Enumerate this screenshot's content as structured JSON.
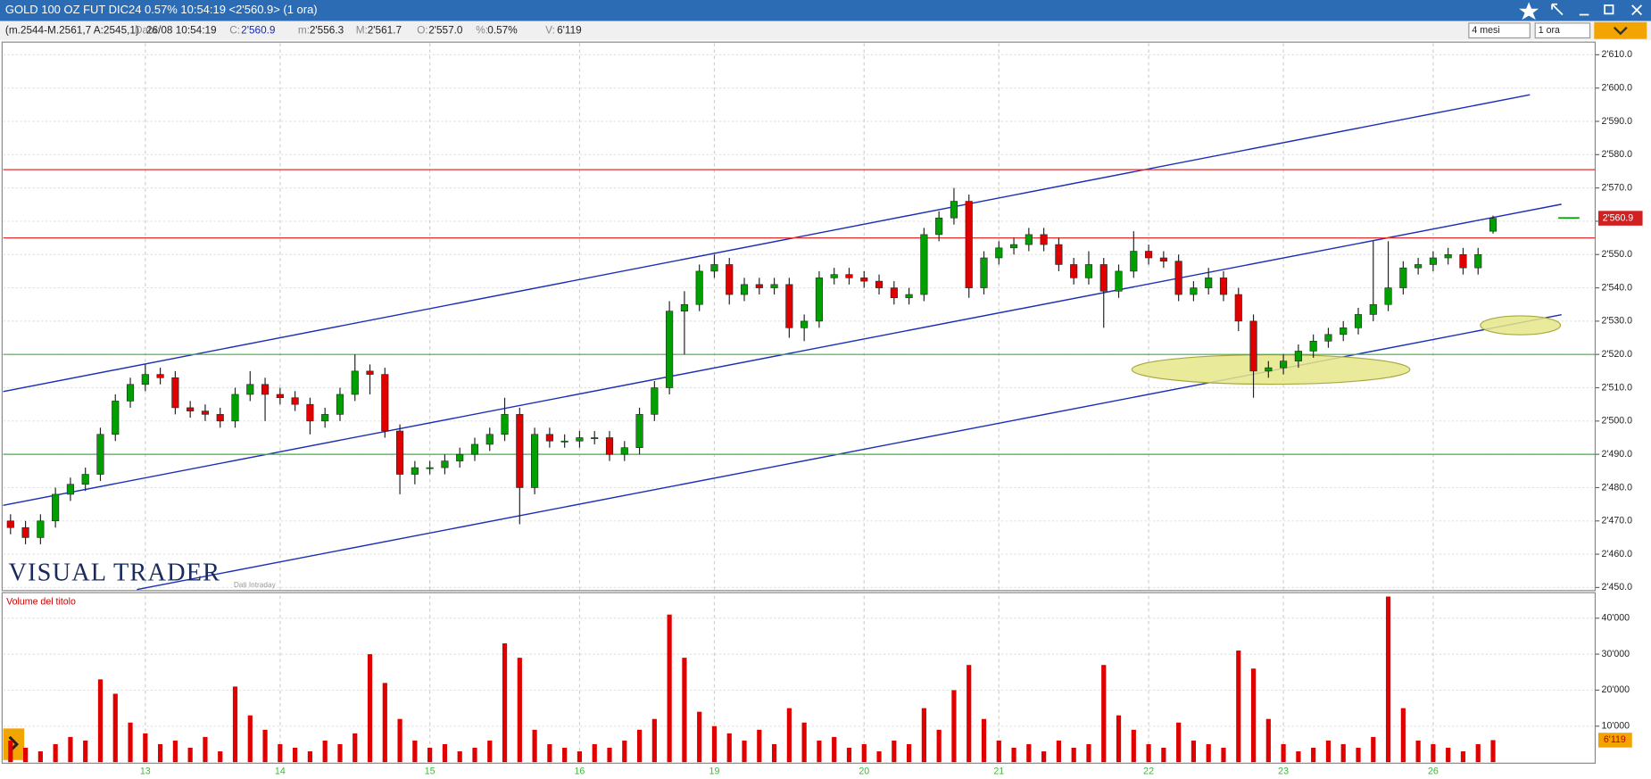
{
  "header": {
    "title": "GOLD 100 OZ FUT DIC24 0.57% 10:54:19  <2'560.9> (1 ora)",
    "range": "(m.2544-M.2561,7 A:2545,1)",
    "fields": [
      {
        "key": "Data:",
        "value": "26/08 10:54:19"
      },
      {
        "key": "C:",
        "value": "2'560.9"
      },
      {
        "key": "m:",
        "value": "2'556.3"
      },
      {
        "key": "M:",
        "value": "2'561.7"
      },
      {
        "key": "O:",
        "value": "2'557.0"
      },
      {
        "key": "%:",
        "value": "0.57%"
      },
      {
        "key": "V:",
        "value": "6'119"
      }
    ],
    "period": "4 mesi",
    "interval": "1 ora"
  },
  "logo": "VISUAL TRADER",
  "source": "Dati Intraday",
  "chart_data": [
    {
      "type": "candlestick",
      "up_color": "#00a000",
      "down_color": "#e00000",
      "grid": true,
      "categories": [
        null,
        null,
        null,
        null,
        null,
        null,
        null,
        null,
        null,
        "13",
        null,
        null,
        null,
        null,
        null,
        null,
        null,
        null,
        "14",
        null,
        null,
        null,
        null,
        null,
        null,
        null,
        null,
        null,
        "15",
        null,
        null,
        null,
        null,
        null,
        null,
        null,
        null,
        null,
        "16",
        null,
        null,
        null,
        null,
        null,
        null,
        null,
        null,
        "19",
        null,
        null,
        null,
        null,
        null,
        null,
        null,
        null,
        null,
        "20",
        null,
        null,
        null,
        null,
        null,
        null,
        null,
        null,
        "21",
        null,
        null,
        null,
        null,
        null,
        null,
        null,
        null,
        null,
        "22",
        null,
        null,
        null,
        null,
        null,
        null,
        null,
        null,
        "23",
        null,
        null,
        null,
        null,
        null,
        null,
        null,
        null,
        null,
        "26",
        null,
        null,
        null,
        null
      ],
      "open": [
        2470,
        2468,
        2465,
        2470,
        2478,
        2481,
        2484,
        2496,
        2506,
        2511,
        2514,
        2513,
        2504,
        2503,
        2502,
        2500,
        2508,
        2511,
        2508,
        2507,
        2505,
        2500,
        2502,
        2508,
        2515,
        2514,
        2497,
        2484,
        2486,
        2486,
        2488,
        2490,
        2493,
        2496,
        2502,
        2480,
        2496,
        2494,
        2494,
        2495,
        2495,
        2490,
        2492,
        2502,
        2510,
        2533,
        2535,
        2545,
        2547,
        2538,
        2541,
        2540,
        2541,
        2528,
        2530,
        2543,
        2544,
        2543,
        2542,
        2540,
        2537,
        2538,
        2556,
        2561,
        2566,
        2540,
        2549,
        2552,
        2553,
        2556,
        2553,
        2547,
        2543,
        2547,
        2539,
        2545,
        2551,
        2549,
        2548,
        2538,
        2540,
        2543,
        2538,
        2530,
        2515,
        2516,
        2518,
        2521,
        2524,
        2526,
        2528,
        2532,
        2535,
        2540,
        2546,
        2547,
        2549,
        2550,
        2546,
        2557
      ],
      "high": [
        2472,
        2470,
        2472,
        2480,
        2483,
        2486,
        2498,
        2508,
        2513,
        2517,
        2516,
        2515,
        2506,
        2505,
        2504,
        2510,
        2515,
        2513,
        2510,
        2509,
        2507,
        2504,
        2510,
        2520,
        2517,
        2516,
        2499,
        2488,
        2488,
        2490,
        2492,
        2495,
        2498,
        2507,
        2504,
        2498,
        2498,
        2496,
        2497,
        2497,
        2497,
        2494,
        2504,
        2512,
        2536,
        2539,
        2547,
        2550,
        2549,
        2543,
        2543,
        2543,
        2543,
        2532,
        2545,
        2546,
        2546,
        2545,
        2544,
        2542,
        2540,
        2558,
        2563,
        2570,
        2568,
        2551,
        2554,
        2555,
        2558,
        2558,
        2555,
        2549,
        2551,
        2549,
        2547,
        2557,
        2553,
        2551,
        2550,
        2542,
        2546,
        2545,
        2540,
        2532,
        2518,
        2520,
        2523,
        2526,
        2528,
        2530,
        2534,
        2554,
        2554,
        2548,
        2549,
        2551,
        2552,
        2552,
        2552,
        2561.7
      ],
      "low": [
        2466,
        2463,
        2463,
        2468,
        2476,
        2479,
        2482,
        2494,
        2504,
        2509,
        2511,
        2502,
        2501,
        2500,
        2498,
        2498,
        2506,
        2500,
        2505,
        2503,
        2496,
        2498,
        2500,
        2506,
        2508,
        2495,
        2478,
        2481,
        2484,
        2484,
        2486,
        2488,
        2491,
        2494,
        2469,
        2478,
        2492,
        2492,
        2492,
        2493,
        2488,
        2488,
        2490,
        2500,
        2508,
        2520,
        2533,
        2543,
        2535,
        2536,
        2538,
        2538,
        2525,
        2524,
        2528,
        2541,
        2541,
        2540,
        2538,
        2535,
        2535,
        2536,
        2554,
        2559,
        2537,
        2538,
        2547,
        2550,
        2551,
        2551,
        2545,
        2541,
        2541,
        2528,
        2537,
        2543,
        2547,
        2546,
        2536,
        2536,
        2538,
        2536,
        2527,
        2507,
        2513,
        2514,
        2516,
        2519,
        2522,
        2524,
        2526,
        2530,
        2533,
        2538,
        2544,
        2545,
        2547,
        2544,
        2544,
        2556.3
      ],
      "close": [
        2468,
        2465,
        2470,
        2478,
        2481,
        2484,
        2496,
        2506,
        2511,
        2514,
        2513,
        2504,
        2503,
        2502,
        2500,
        2508,
        2511,
        2508,
        2507,
        2505,
        2500,
        2502,
        2508,
        2515,
        2514,
        2497,
        2484,
        2486,
        2486,
        2488,
        2490,
        2493,
        2496,
        2502,
        2480,
        2496,
        2494,
        2494,
        2495,
        2495,
        2490,
        2492,
        2502,
        2510,
        2533,
        2535,
        2545,
        2547,
        2538,
        2541,
        2540,
        2541,
        2528,
        2530,
        2543,
        2544,
        2543,
        2542,
        2540,
        2537,
        2538,
        2556,
        2561,
        2566,
        2540,
        2549,
        2552,
        2553,
        2556,
        2553,
        2547,
        2543,
        2547,
        2539,
        2545,
        2551,
        2549,
        2548,
        2538,
        2540,
        2543,
        2538,
        2530,
        2515,
        2516,
        2518,
        2521,
        2524,
        2526,
        2528,
        2532,
        2535,
        2540,
        2546,
        2547,
        2549,
        2550,
        2546,
        2550,
        2560.9
      ],
      "levels": [
        {
          "value": 2575.5,
          "color": "#e03030"
        },
        {
          "value": 2555,
          "color": "#e03030"
        },
        {
          "value": 2520,
          "color": "#40b040"
        },
        {
          "value": 2490,
          "color": "#40b040"
        }
      ],
      "ylim": [
        2449.4,
        2613.8
      ],
      "yticks": [
        {
          "value": 2450,
          "label": "2'450.0"
        },
        {
          "value": 2460,
          "label": "2'460.0"
        },
        {
          "value": 2470,
          "label": "2'470.0"
        },
        {
          "value": 2480,
          "label": "2'480.0"
        },
        {
          "value": 2490,
          "label": "2'490.0"
        },
        {
          "value": 2500,
          "label": "2'500.0"
        },
        {
          "value": 2510,
          "label": "2'510.0"
        },
        {
          "value": 2520,
          "label": "2'520.0"
        },
        {
          "value": 2530,
          "label": "2'530.0"
        },
        {
          "value": 2540,
          "label": "2'540.0"
        },
        {
          "value": 2550,
          "label": "2'550.0"
        },
        {
          "value": 2560,
          "label": "2'560.0"
        },
        {
          "value": 2570,
          "label": "2'570.0"
        },
        {
          "value": 2580,
          "label": "2'580.0"
        },
        {
          "value": 2590,
          "label": "2'590.0"
        },
        {
          "value": 2600,
          "label": "2'600.0"
        },
        {
          "value": 2610,
          "label": "2'610.0"
        }
      ]
    },
    {
      "type": "bar",
      "title": "Volume del titolo",
      "color": "#e00000",
      "grid": true,
      "values": [
        6000,
        4000,
        3000,
        5000,
        7000,
        6000,
        23000,
        19000,
        11000,
        8000,
        5000,
        6000,
        4000,
        7000,
        3000,
        21000,
        13000,
        9000,
        5000,
        4000,
        3000,
        6000,
        5000,
        8000,
        30000,
        22000,
        12000,
        6000,
        4000,
        5000,
        3000,
        4000,
        6000,
        33000,
        29000,
        9000,
        5000,
        4000,
        3000,
        5000,
        4000,
        6000,
        9000,
        12000,
        41000,
        29000,
        14000,
        10000,
        8000,
        6000,
        9000,
        5000,
        15000,
        11000,
        6000,
        7000,
        4000,
        5000,
        3000,
        6000,
        5000,
        15000,
        9000,
        20000,
        27000,
        12000,
        6000,
        4000,
        5000,
        3000,
        6000,
        4000,
        5000,
        27000,
        13000,
        9000,
        5000,
        4000,
        11000,
        6000,
        5000,
        4000,
        31000,
        26000,
        12000,
        5000,
        3000,
        4000,
        6000,
        5000,
        4000,
        7000,
        46000,
        15000,
        6000,
        5000,
        4000,
        3000,
        5000,
        6119
      ],
      "value_labels": [
        null,
        null,
        null,
        null,
        null,
        null,
        null,
        null,
        null,
        null,
        null,
        null,
        null,
        null,
        null,
        null,
        null,
        null,
        null,
        null,
        null,
        null,
        null,
        null,
        null,
        null,
        null,
        null,
        null,
        null,
        null,
        null,
        null,
        null,
        null,
        null,
        null,
        null,
        null,
        null,
        null,
        null,
        null,
        null,
        null,
        null,
        null,
        null,
        null,
        null,
        null,
        null,
        null,
        null,
        null,
        null,
        null,
        null,
        null,
        null,
        null,
        null,
        null,
        null,
        null,
        null,
        null,
        null,
        null,
        null,
        null,
        null,
        null,
        null,
        null,
        null,
        null,
        null,
        null,
        null,
        null,
        null,
        null,
        null,
        null,
        null,
        null,
        null,
        null,
        null,
        null,
        null,
        null,
        null,
        null,
        null,
        null,
        null,
        null,
        "6'119"
      ],
      "ylim": [
        0,
        46500
      ],
      "yticks": [
        {
          "value": 10000,
          "label": "10'000"
        },
        {
          "value": 20000,
          "label": "20'000"
        },
        {
          "value": 30000,
          "label": "30'000"
        },
        {
          "value": 40000,
          "label": "40'000"
        }
      ]
    }
  ]
}
